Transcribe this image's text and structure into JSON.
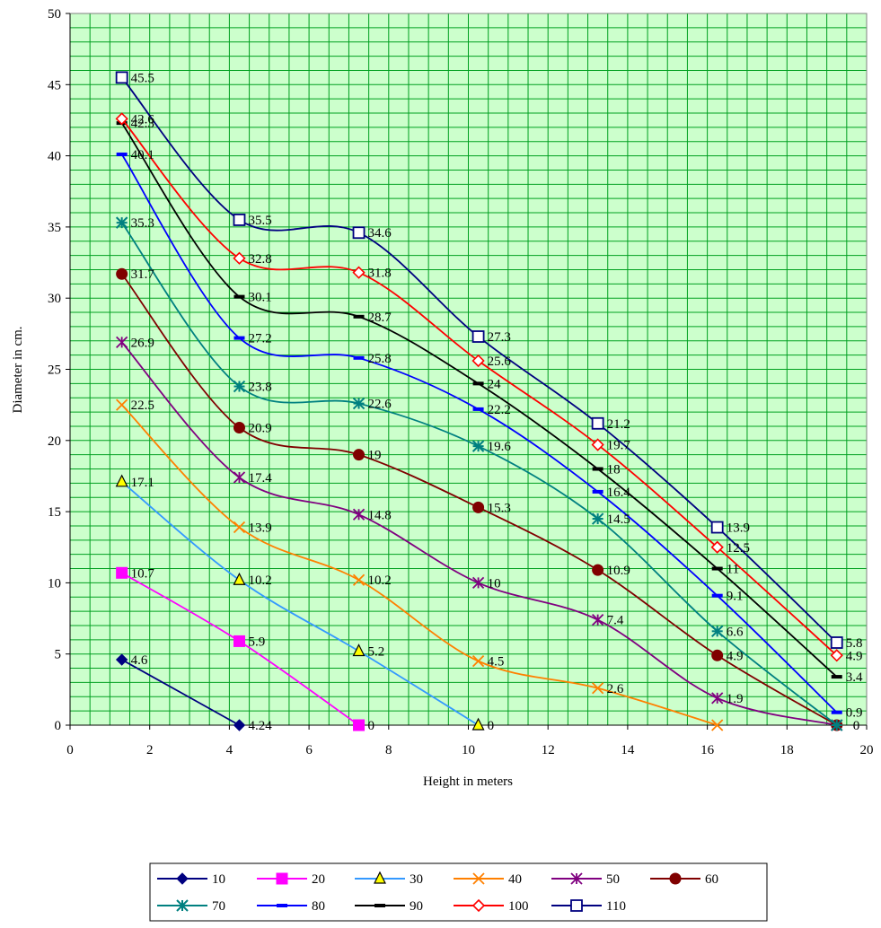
{
  "chart_data": {
    "type": "line",
    "title": "",
    "xlabel": "Height in meters",
    "ylabel": "Diameter  in cm.",
    "xlim": [
      0,
      20
    ],
    "ylim": [
      0,
      50
    ],
    "xticks": [
      "0",
      "2",
      "4",
      "6",
      "8",
      "10",
      "12",
      "14",
      "16",
      "18",
      "20"
    ],
    "yticks": [
      "0",
      "5",
      "10",
      "15",
      "20",
      "25",
      "30",
      "35",
      "40",
      "45",
      "50"
    ],
    "grid": true,
    "smooth": true,
    "legend_position": "bottom",
    "plot_background": "#ccffcc",
    "grid_color": "#00a020",
    "x": [
      1.3,
      4.25,
      7.25,
      10.25,
      13.25,
      16.25,
      19.25
    ],
    "series": [
      {
        "name": "10",
        "color": "#000080",
        "marker": "diamond",
        "values": [
          4.6,
          0,
          null,
          null,
          null,
          null,
          null
        ],
        "labels": [
          "4.6",
          "4.24",
          null,
          null,
          null,
          null,
          null
        ]
      },
      {
        "name": "20",
        "color": "#ff00ff",
        "marker": "square-filled",
        "values": [
          10.7,
          5.9,
          0,
          null,
          null,
          null,
          null
        ],
        "labels": [
          "10.7",
          "5.9",
          "0",
          null,
          null,
          null,
          null
        ]
      },
      {
        "name": "30",
        "color": "#3399ff",
        "marker": "triangle",
        "values": [
          17.1,
          10.2,
          5.2,
          0,
          null,
          null,
          null
        ],
        "labels": [
          "17.1",
          "10.2",
          "5.2",
          "0",
          null,
          null,
          null
        ]
      },
      {
        "name": "40",
        "color": "#ff8000",
        "marker": "x",
        "values": [
          22.5,
          13.9,
          10.2,
          4.5,
          2.6,
          0,
          null
        ],
        "labels": [
          "22.5",
          "13.9",
          "10.2",
          "4.5",
          "2.6",
          null,
          null
        ]
      },
      {
        "name": "50",
        "color": "#800080",
        "marker": "star",
        "values": [
          26.9,
          17.4,
          14.8,
          10,
          7.4,
          1.9,
          0
        ],
        "labels": [
          "26.9",
          "17.4",
          "14.8",
          "10",
          "7.4",
          "1.9",
          null
        ]
      },
      {
        "name": "60",
        "color": "#800000",
        "marker": "circle",
        "values": [
          31.7,
          20.9,
          19,
          15.3,
          10.9,
          4.9,
          0
        ],
        "labels": [
          "31.7",
          "20.9",
          "19",
          "15.3",
          "10.9",
          "4.9",
          null
        ]
      },
      {
        "name": "70",
        "color": "#008080",
        "marker": "asterisk",
        "values": [
          35.3,
          23.8,
          22.6,
          19.6,
          14.5,
          6.6,
          0
        ],
        "labels": [
          "35.3",
          "23.8",
          "22.6",
          "19.6",
          "14.5",
          "6.6",
          null
        ]
      },
      {
        "name": "80",
        "color": "#0000ff",
        "marker": "dash",
        "values": [
          40.1,
          27.2,
          25.8,
          22.2,
          16.4,
          9.1,
          0.9
        ],
        "labels": [
          "40.1",
          "27.2",
          "25.8",
          "22.2",
          "16.4",
          "9.1",
          "0.9"
        ]
      },
      {
        "name": "90",
        "color": "#000000",
        "marker": "dash",
        "values": [
          42.3,
          30.1,
          28.7,
          24,
          18,
          11,
          3.4
        ],
        "labels": [
          "42.3",
          "30.1",
          "28.7",
          "24",
          "18",
          "11",
          "3.4"
        ]
      },
      {
        "name": "100",
        "color": "#ff0000",
        "marker": "diamond-open",
        "values": [
          42.6,
          32.8,
          31.8,
          25.6,
          19.7,
          12.5,
          4.9
        ],
        "labels": [
          "42.6",
          "32.8",
          "31.8",
          "25.6",
          "19.7",
          "12.5",
          "4.9"
        ]
      },
      {
        "name": "110",
        "color": "#000080",
        "marker": "square-open",
        "values": [
          45.5,
          35.5,
          34.6,
          27.3,
          21.2,
          13.9,
          5.8
        ],
        "labels": [
          "45.5",
          "35.5",
          "34.6",
          "27.3",
          "21.2",
          "13.9",
          "5.8"
        ]
      }
    ],
    "extra_labels": [
      {
        "text": "0",
        "x": 19.25,
        "y": 0
      }
    ]
  }
}
